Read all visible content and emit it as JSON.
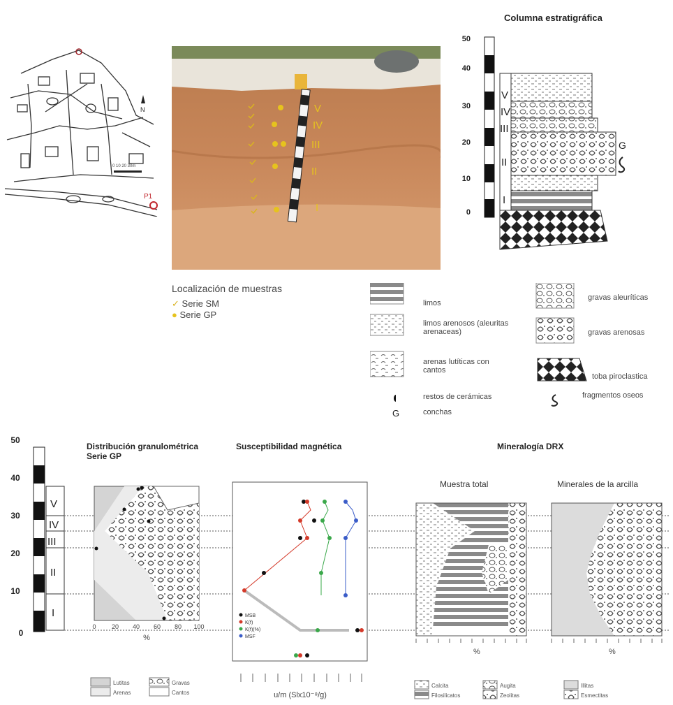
{
  "top": {
    "column_title": "Columna estratigráfica",
    "column_scale": [
      "50",
      "40",
      "30",
      "20",
      "10",
      "0"
    ],
    "units": [
      "V",
      "IV",
      "III",
      "II",
      "I"
    ],
    "photo_labels": [
      "V",
      "IV",
      "III",
      "II",
      "I"
    ],
    "map_labels": {
      "site": "P1"
    },
    "sample_location": {
      "title": "Localización de muestras",
      "series": [
        {
          "label": "Serie SM",
          "marker": "check",
          "color": "#d9b321"
        },
        {
          "label": "Serie GP",
          "marker": "dot",
          "color": "#e6c31e"
        }
      ]
    }
  },
  "legend": {
    "items": [
      {
        "label": "limos",
        "pattern": "limos"
      },
      {
        "label": "gravas aleuríticas",
        "pattern": "gravas-aleuriticas"
      },
      {
        "label": "limos arenosos (aleuritas arenaceas)",
        "pattern": "limos-arenosos"
      },
      {
        "label": "gravas arenosas",
        "pattern": "gravas-arenosas"
      },
      {
        "label": "arenas lutíticas con cantos",
        "pattern": "arenas-luticas"
      },
      {
        "label": "toba piroclastica",
        "pattern": "toba"
      },
      {
        "label": "restos de cerámicas",
        "pattern": "ceramica"
      },
      {
        "label": "fragmentos oseos",
        "pattern": "oseos"
      },
      {
        "label": "conchas",
        "pattern": "conchas"
      }
    ]
  },
  "bottom": {
    "scale": [
      "50",
      "40",
      "30",
      "20",
      "10",
      "0"
    ],
    "units": [
      "V",
      "IV",
      "III",
      "II",
      "I"
    ],
    "grain": {
      "title_line1": "Distribución granulométrica",
      "title_line2": "Serie GP",
      "xticks": [
        "0",
        "20",
        "40",
        "60",
        "80",
        "100"
      ],
      "xlabel": "%",
      "legend": [
        "Lutitas",
        "Gravas",
        "Arenas",
        "Cantos"
      ]
    },
    "mag": {
      "title": "Susceptibilidad magnética",
      "xlabel": "u/m    (Slx10⁻⁸/g)",
      "series": [
        {
          "name": "MSB",
          "color": "#111111"
        },
        {
          "name": "K(f)",
          "color": "#d43a2a"
        },
        {
          "name": "K(f)(%)",
          "color": "#3aa84a"
        },
        {
          "name": "MSF",
          "color": "#3a5cc8"
        }
      ]
    },
    "drx": {
      "title": "Mineralogía DRX",
      "total_title": "Muestra total",
      "clay_title": "Minerales de la arcilla",
      "xlabel": "%",
      "total_legend": [
        "Calcita",
        "Augita",
        "Filosilicatos",
        "Zeolitas"
      ],
      "clay_legend": [
        "Illitas",
        "Esmectitas"
      ]
    }
  }
}
